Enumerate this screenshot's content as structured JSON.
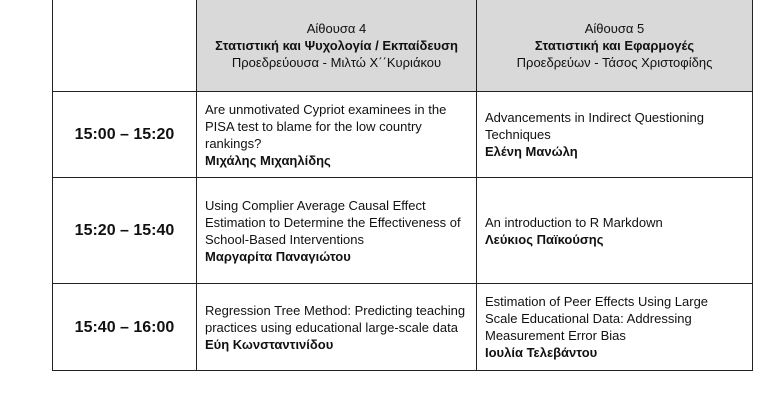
{
  "header": {
    "room4": {
      "name": "Αίθουσα 4",
      "topic": "Στατιστική και Ψυχολογία / Εκπαίδευση",
      "chair": "Προεδρεύουσα - Μιλτώ Χ΄΄Κυριάκου"
    },
    "room5": {
      "name": "Αίθουσα 5",
      "topic": "Στατιστική και Εφαρμογές",
      "chair": "Προεδρεύων - Τάσος Χριστοφίδης"
    }
  },
  "rows": [
    {
      "time": "15:00 – 15:20",
      "room4": {
        "title": "Are unmotivated Cypriot examinees in the PISA test to blame for the low country rankings?",
        "speaker": "Μιχάλης Μιχαηλίδης"
      },
      "room5": {
        "title": "Advancements in Indirect Questioning Techniques",
        "speaker": "Ελένη Μανώλη"
      }
    },
    {
      "time": "15:20 – 15:40",
      "room4": {
        "title": "Using Complier Average Causal Effect Estimation to Determine the Effectiveness of School-Based Interventions",
        "speaker": "Μαργαρίτα Παναγιώτου"
      },
      "room5": {
        "title": "An introduction to R Markdown",
        "speaker": "Λεύκιος Παϊκούσης"
      }
    },
    {
      "time": "15:40 – 16:00",
      "room4": {
        "title": "Regression Tree Method: Predicting teaching practices using educational large-scale data",
        "speaker": "Εύη Κωνσταντινίδου"
      },
      "room5": {
        "title": "Estimation of Peer Effects Using Large Scale Educational Data: Addressing Measurement Error Bias",
        "speaker": "Ιουλία Τελεβάντου"
      }
    }
  ]
}
